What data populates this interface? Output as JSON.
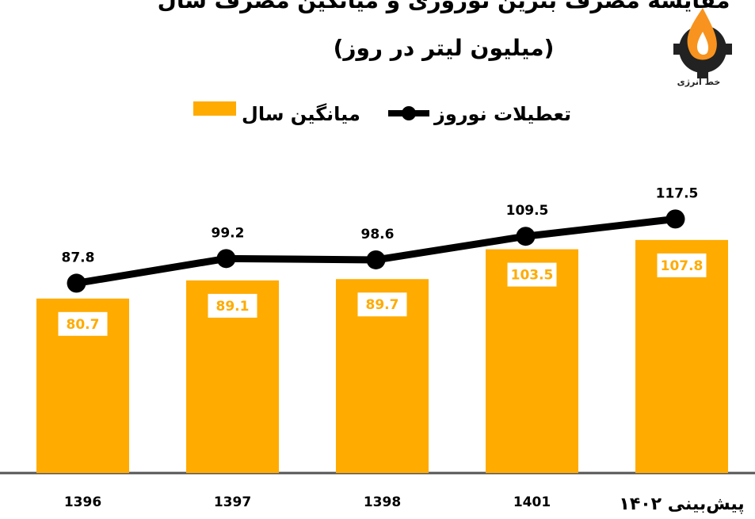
{
  "chart_data": {
    "type": "bar",
    "title": "مقایسه مصرف بنزین نوروزی و میانگین مصرف سال",
    "subtitle": "(میلیون لیتر در روز)",
    "categories": [
      "1396",
      "1397",
      "1398",
      "1401",
      "پیش‌بینی ۱۴۰۲"
    ],
    "series": [
      {
        "name": "میانگین سال",
        "color": "#FFAB00",
        "values": [
          80.7,
          89.1,
          89.7,
          103.5,
          107.8
        ]
      },
      {
        "name": "تعطیلات نوروز",
        "color": "#000000",
        "type": "line",
        "values": [
          87.8,
          99.2,
          98.6,
          109.5,
          117.5
        ]
      }
    ],
    "ylim": [
      0,
      140
    ]
  },
  "logo": {
    "text": "خط انرژی"
  }
}
